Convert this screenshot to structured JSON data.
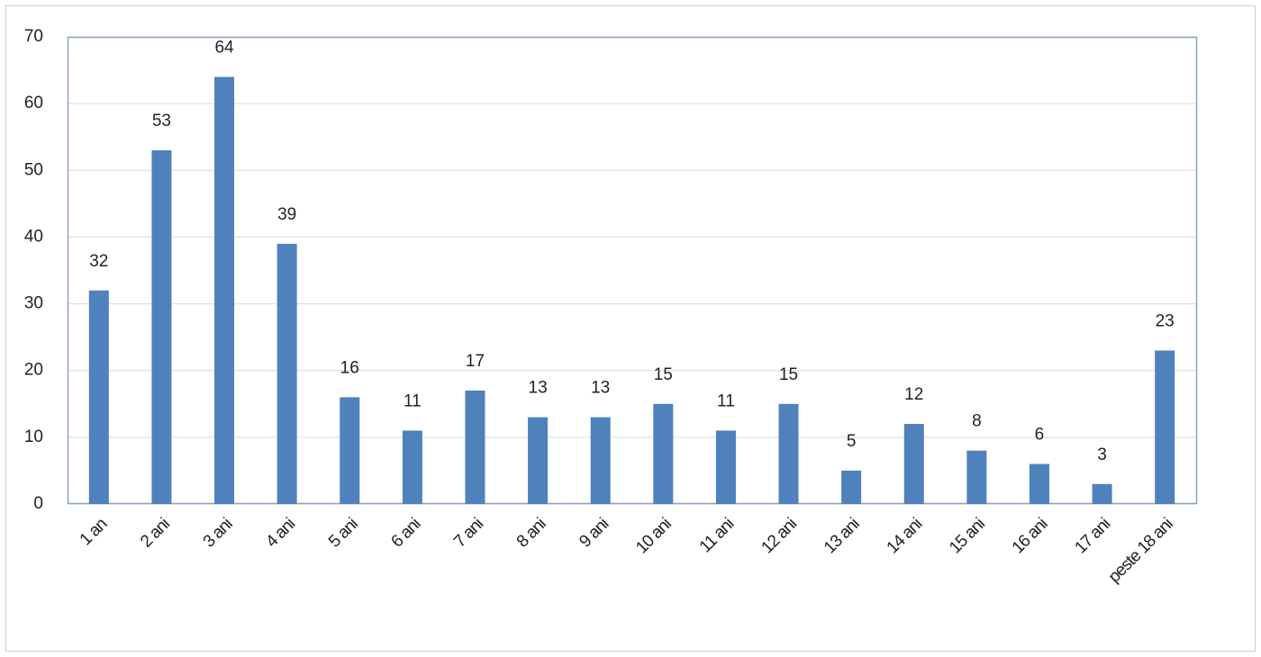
{
  "chart_data": {
    "type": "bar",
    "categories": [
      "1 an",
      "2 ani",
      "3 ani",
      "4 ani",
      "5 ani",
      "6 ani",
      "7 ani",
      "8 ani",
      "9 ani",
      "10 ani",
      "11 ani",
      "12 ani",
      "13 ani",
      "14 ani",
      "15 ani",
      "16 ani",
      "17 ani",
      "peste 18 ani"
    ],
    "values": [
      32,
      53,
      64,
      39,
      16,
      11,
      17,
      13,
      13,
      15,
      11,
      15,
      5,
      12,
      8,
      6,
      3,
      23
    ],
    "color": "#4f81bd",
    "ylim": [
      0,
      70
    ],
    "yticks": [
      0,
      10,
      20,
      30,
      40,
      50,
      60,
      70
    ],
    "grid": true
  }
}
